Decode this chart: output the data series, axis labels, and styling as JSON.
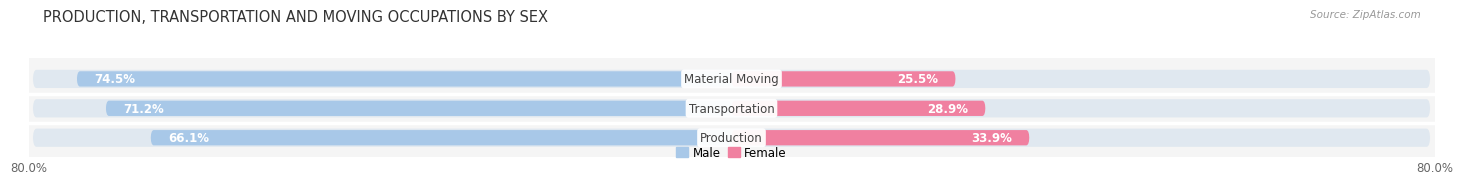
{
  "title": "PRODUCTION, TRANSPORTATION AND MOVING OCCUPATIONS BY SEX",
  "source_text": "Source: ZipAtlas.com",
  "categories": [
    "Material Moving",
    "Transportation",
    "Production"
  ],
  "male_values": [
    74.5,
    71.2,
    66.1
  ],
  "female_values": [
    25.5,
    28.9,
    33.9
  ],
  "male_color": "#a8c8e8",
  "female_color": "#f080a0",
  "bar_height": 0.52,
  "bar_bg_color": "#e0e8f0",
  "xlim": [
    -80,
    80
  ],
  "xtick_left_label": "80.0%",
  "xtick_right_label": "80.0%",
  "background_color": "#ffffff",
  "plot_bg_color": "#f5f5f5",
  "title_fontsize": 10.5,
  "source_fontsize": 7.5,
  "label_fontsize": 8.5,
  "cat_fontsize": 8.5,
  "tick_fontsize": 8.5,
  "legend_male": "Male",
  "legend_female": "Female"
}
